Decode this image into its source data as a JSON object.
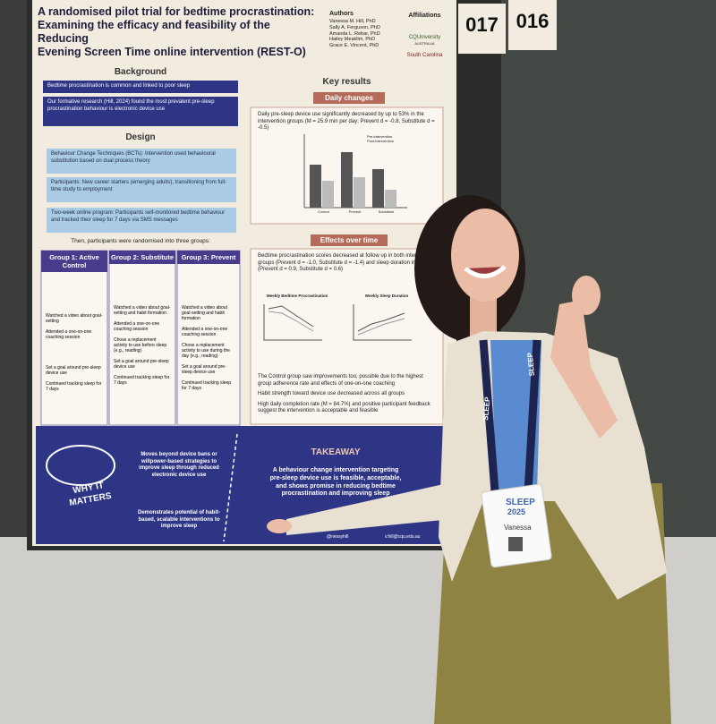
{
  "board_numbers": [
    "017",
    "016"
  ],
  "poster": {
    "title": [
      "A randomised pilot trial for bedtime procrastination:",
      "Examining the efficacy and feasibility of the Reducing",
      "Evening Screen Time online intervention (REST-O)"
    ],
    "authors_heading": "Authors",
    "authors": [
      "Vanessa M. Hill, PhD",
      "Sally A. Ferguson, PhD",
      "Amanda L. Rebar, PhD",
      "Hailey Meaklim, PhD",
      "Grace E. Vincent, PhD"
    ],
    "affiliations_heading": "Affiliations",
    "affiliations": [
      "CQUniversity",
      "AUSTRALIA",
      "South Carolina"
    ],
    "background": {
      "heading": "Background",
      "points": [
        "Bedtime procrastination is common and linked to poor sleep",
        "Our formative research (Hill, 2024) found the most prevalent pre-sleep procrastination behaviour is electronic device use"
      ]
    },
    "design": {
      "heading": "Design",
      "points": [
        "Behaviour Change Techniques (BCTs): Intervention used behavioural substitution based on dual process theory",
        "Participants: New career starters (emerging adults), transitioning from full-time study to employment",
        "Two-week online program: Participants self-monitored bedtime behaviour and tracked their sleep for 7 days via SMS messages"
      ],
      "randomised": "Then, participants were randomised into three groups:"
    },
    "groups": [
      {
        "title": "Group 1: Active Control",
        "items": [
          "Watched a video about goal-setting",
          "Attended a one-on-one coaching session",
          "Set a goal around pre-sleep device use",
          "Continued tracking sleep for 7 days"
        ]
      },
      {
        "title": "Group 2: Substitute",
        "items": [
          "Watched a video about goal-setting and habit formation",
          "Attended a one-on-one coaching session",
          "Chose a replacement activity to use before sleep (e.g., reading)",
          "Set a goal around pre-sleep device use",
          "Continued tracking sleep for 7 days"
        ]
      },
      {
        "title": "Group 3: Prevent",
        "items": [
          "Watched a video about goal-setting and habit formation",
          "Attended a one-on-one coaching session",
          "Chose a replacement activity to use during the day (e.g., reading)",
          "Set a goal around pre-sleep device use",
          "Continued tracking sleep for 7 days"
        ]
      }
    ],
    "key_results": {
      "heading": "Key results",
      "daily": {
        "label": "Daily changes",
        "text": "Daily pre-sleep device use significantly decreased by up to 53% in the intervention groups (M = 25.9 min per day; Prevent d = -0.8, Substitute d = -0.5)",
        "legend": [
          "Pre-intervention",
          "Post-intervention"
        ],
        "categories": [
          "Control",
          "Prevent",
          "Substitute"
        ]
      },
      "effects": {
        "label": "Effects over time",
        "text": "Bedtime procrastination scores decreased at follow up in both intervention groups (Prevent d = -1.0, Substitute d = -1.4) and sleep duration increased (Prevent d = 0.9, Substitute d = 0.6)",
        "charts": [
          "Weekly Bedtime Procrastination",
          "Weekly Sleep Duration"
        ],
        "bullets": [
          "The Control group saw improvements too, possible due to the highest group adherence rate and effects of one-on-one coaching",
          "Habit strength toward device use decreased across all groups",
          "High daily completion rate (M = 84.7%) and positive participant feedback suggest the intervention is acceptable and feasible"
        ]
      }
    },
    "why": {
      "heading": "WHY IT MATTERS",
      "points": [
        "Moves beyond device bans or willpower-based strategies to improve sleep through reduced electronic device use",
        "Demonstrates potential of habit-based, scalable interventions to improve sleep"
      ]
    },
    "takeaway": {
      "heading": "TAKEAWAY",
      "text": "A behaviour change intervention targeting pre-sleep device use is feasible, acceptable, and shows promise in reducing bedtime procrastination and improving sleep"
    },
    "contact": [
      "@nessyhill",
      "v.hill@cqu.edu.au"
    ]
  },
  "badge": {
    "event": "SLEEP",
    "year": "2025",
    "name": "Vanessa"
  },
  "lanyard": "SLEEP"
}
